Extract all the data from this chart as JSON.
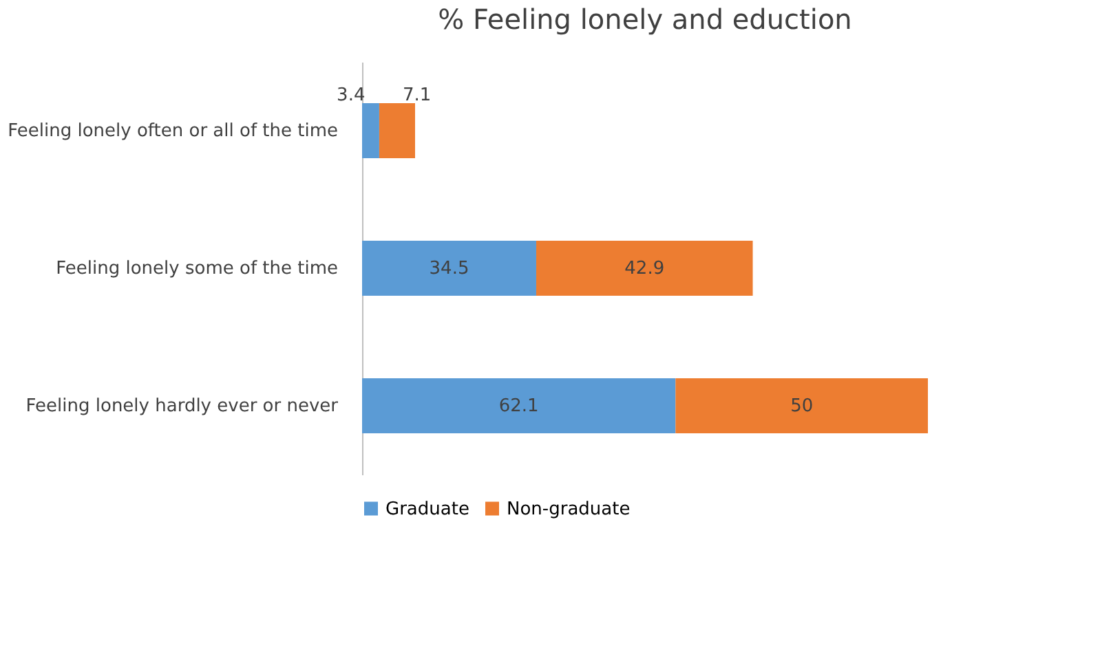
{
  "chart_data": {
    "type": "bar",
    "orientation": "horizontal",
    "stacked": true,
    "title": "% Feeling lonely and eduction",
    "categories": [
      "Feeling lonely often or all of the time",
      "Feeling lonely some of the time",
      "Feeling lonely hardly ever or never"
    ],
    "series": [
      {
        "name": "Graduate",
        "color": "#5b9bd5",
        "values": [
          3.4,
          34.5,
          62.1
        ]
      },
      {
        "name": "Non-graduate",
        "color": "#ed7d31",
        "values": [
          7.1,
          42.9,
          50
        ]
      }
    ],
    "data_labels": true,
    "legend": "bottom",
    "grid": false
  }
}
